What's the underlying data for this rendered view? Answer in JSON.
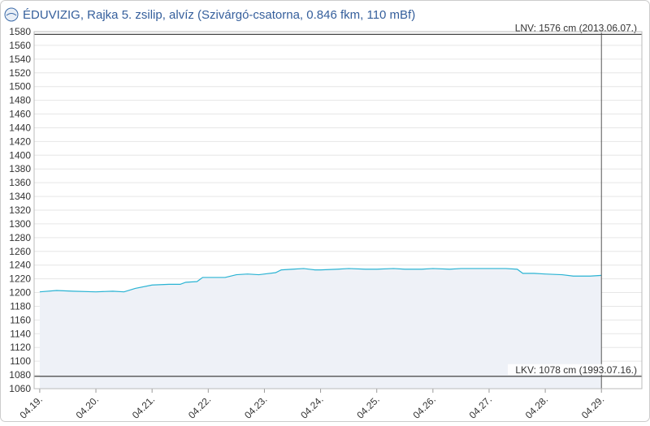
{
  "chart_data": {
    "type": "area",
    "title": "ÉDUVIZIG, Rajka 5. zsilip, alvíz (Szivárgó-csatorna, 0.846 fkm, 110 mBf)",
    "x": [
      0,
      0.3,
      0.6,
      1,
      1.3,
      1.5,
      1.7,
      2,
      2.3,
      2.5,
      2.6,
      2.8,
      2.9,
      3,
      3.3,
      3.5,
      3.7,
      3.9,
      4,
      4.2,
      4.3,
      4.5,
      4.7,
      4.9,
      5,
      5.3,
      5.5,
      5.8,
      6,
      6.3,
      6.5,
      6.8,
      7,
      7.3,
      7.5,
      7.8,
      8,
      8.3,
      8.5,
      8.6,
      8.8,
      9,
      9.3,
      9.5,
      9.8,
      10
    ],
    "series": [
      {
        "color": "#29b3d3",
        "values": [
          1201,
          1203,
          1202,
          1201,
          1202,
          1201,
          1206,
          1211,
          1212,
          1212,
          1215,
          1216,
          1222,
          1222,
          1222,
          1226,
          1227,
          1226,
          1227,
          1229,
          1233,
          1234,
          1235,
          1233,
          1233,
          1234,
          1235,
          1234,
          1234,
          1235,
          1234,
          1234,
          1235,
          1234,
          1235,
          1235,
          1235,
          1235,
          1234,
          1228,
          1228,
          1227,
          1226,
          1224,
          1224,
          1225
        ]
      }
    ],
    "xlim": [
      -0.1,
      10.72
    ],
    "xticks": [
      {
        "value": 0,
        "label": "04.19."
      },
      {
        "value": 1,
        "label": "04.20."
      },
      {
        "value": 2,
        "label": "04.21."
      },
      {
        "value": 3,
        "label": "04.22."
      },
      {
        "value": 4,
        "label": "04.23."
      },
      {
        "value": 5,
        "label": "04.24."
      },
      {
        "value": 6,
        "label": "04.25."
      },
      {
        "value": 7,
        "label": "04.26."
      },
      {
        "value": 8,
        "label": "04.27."
      },
      {
        "value": 9,
        "label": "04.28."
      },
      {
        "value": 10,
        "label": "04.29."
      }
    ],
    "ylim": [
      1060,
      1580
    ],
    "yticks": [
      1060,
      1080,
      1100,
      1120,
      1140,
      1160,
      1180,
      1200,
      1220,
      1240,
      1260,
      1280,
      1300,
      1320,
      1340,
      1360,
      1380,
      1400,
      1420,
      1440,
      1460,
      1480,
      1500,
      1520,
      1540,
      1560,
      1580
    ],
    "grid": true,
    "reference_lines": [
      {
        "value": 1576,
        "label": "LNV: 1576 cm (2013.06.07.)"
      },
      {
        "value": 1078,
        "label": "LKV: 1078 cm (1993.07.16.)"
      }
    ],
    "now_line": 10
  }
}
